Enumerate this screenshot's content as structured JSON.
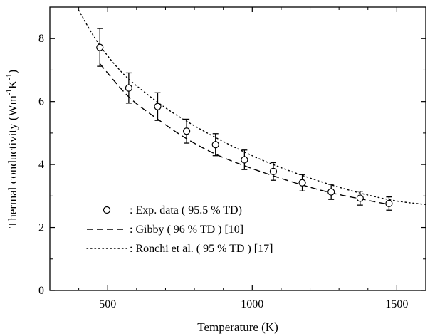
{
  "chart_data": {
    "type": "scatter",
    "xlabel": "Temperature (K)",
    "ylabel_main": "Thermal conductivity (Wm",
    "ylabel_sup1": "-1",
    "ylabel_mid": "K",
    "ylabel_sup2": "-1",
    "ylabel_close": ")",
    "xlim": [
      300,
      1600
    ],
    "ylim": [
      0,
      9
    ],
    "xticks": [
      500,
      1000,
      1500
    ],
    "xtick_labels": [
      "500",
      "1000",
      "1500"
    ],
    "yticks": [
      0,
      2,
      4,
      6,
      8
    ],
    "ytick_labels": [
      "0",
      "2",
      "4",
      "6",
      "8"
    ],
    "grid": false,
    "legend_position": "lower-left",
    "series": [
      {
        "name": ": Exp. data ( 95.5 % TD)",
        "style": "open-circle-with-errorbars",
        "x": [
          473,
          573,
          673,
          773,
          873,
          973,
          1073,
          1173,
          1273,
          1373,
          1473
        ],
        "y": [
          7.72,
          6.43,
          5.84,
          5.06,
          4.63,
          4.15,
          3.78,
          3.42,
          3.13,
          2.93,
          2.76
        ],
        "err_low": [
          0.6,
          0.48,
          0.44,
          0.38,
          0.35,
          0.31,
          0.28,
          0.26,
          0.24,
          0.22,
          0.21
        ],
        "err_high": [
          0.6,
          0.48,
          0.44,
          0.38,
          0.35,
          0.31,
          0.28,
          0.26,
          0.24,
          0.22,
          0.21
        ]
      },
      {
        "name": ": Gibby ( 96 % TD ) [10]",
        "style": "dashed",
        "x": [
          473,
          573,
          673,
          773,
          873,
          973,
          1073,
          1173,
          1273,
          1373,
          1473
        ],
        "y": [
          7.2,
          6.15,
          5.44,
          4.82,
          4.33,
          3.96,
          3.64,
          3.35,
          3.1,
          2.91,
          2.73
        ]
      },
      {
        "name": ": Ronchi et al. ( 95 % TD ) [17]",
        "style": "dotted",
        "x": [
          400,
          450,
          500,
          550,
          600,
          700,
          800,
          900,
          1000,
          1100,
          1200,
          1300,
          1400,
          1500,
          1600
        ],
        "y": [
          8.9,
          8.1,
          7.45,
          6.92,
          6.5,
          5.8,
          5.23,
          4.73,
          4.28,
          3.9,
          3.57,
          3.28,
          3.03,
          2.84,
          2.73
        ]
      }
    ]
  }
}
